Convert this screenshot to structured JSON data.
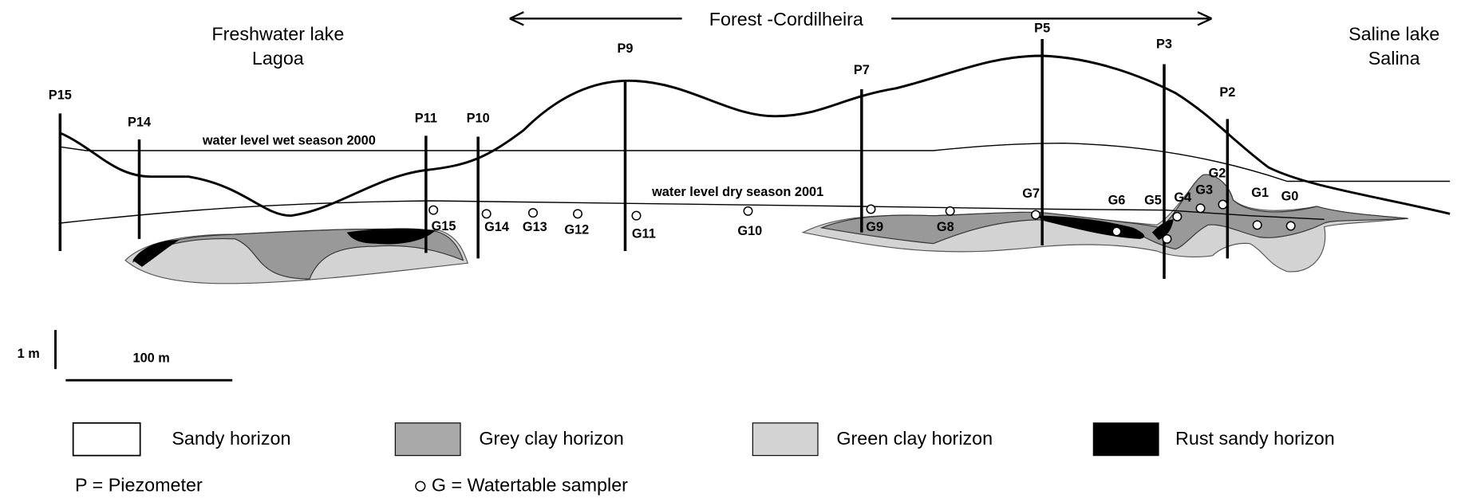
{
  "header": {
    "span_label": "Forest -Cordilheira",
    "left_lake": [
      "Freshwater lake",
      "Lagoa"
    ],
    "right_lake": [
      "Saline lake",
      "Salina"
    ]
  },
  "water_levels": {
    "wet": "water level wet season 2000",
    "dry": "water level dry season 2001"
  },
  "piezometers": [
    "P15",
    "P14",
    "P11",
    "P10",
    "P9",
    "P7",
    "P5",
    "P3",
    "P2"
  ],
  "samplers": [
    "G15",
    "G14",
    "G13",
    "G12",
    "G11",
    "G10",
    "G9",
    "G8",
    "G7",
    "G6",
    "G5",
    "G4",
    "G3",
    "G2",
    "G1",
    "G0"
  ],
  "scale": {
    "vertical": "1 m",
    "horizontal": "100 m"
  },
  "legend": {
    "items": [
      "Sandy horizon",
      "Grey clay horizon",
      "Green clay horizon",
      "Rust sandy horizon"
    ],
    "notes": [
      "P = Piezometer",
      "G = Watertable sampler"
    ]
  }
}
